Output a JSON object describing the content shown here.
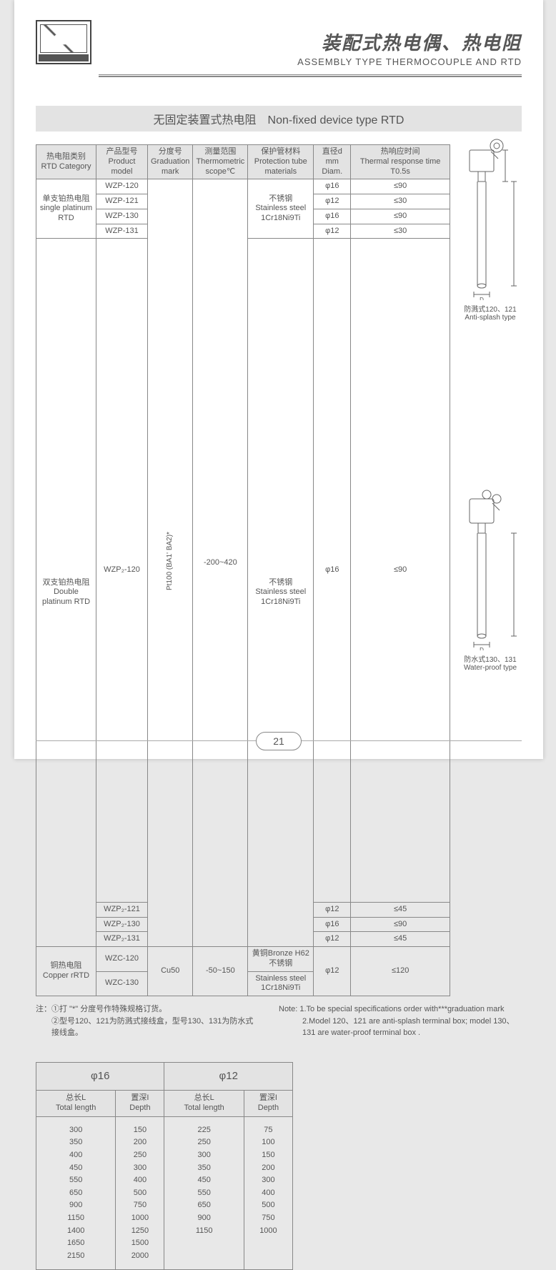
{
  "header": {
    "title_cn": "装配式热电偶、热电阻",
    "title_en": "ASSEMBLY TYPE THERMOCOUPLE AND RTD"
  },
  "section_title": "无固定装置式热电阻　Non-fixed  device type RTD",
  "table1": {
    "headers": {
      "cat_cn": "热电阻类别",
      "cat_en": "RTD Category",
      "model_cn": "产品型号",
      "model_en": "Product model",
      "grad_cn": "分度号",
      "grad_en": "Graduation mark",
      "scope_cn": "测量范围",
      "scope_en": "Thermometric scope℃",
      "tube_cn": "保护管材料",
      "tube_en": "Protection tube materials",
      "diam_cn": "直径d",
      "diam_en": "mm Diam.",
      "resp_cn": "热响应时间",
      "resp_en": "Thermal response time T0.5s"
    },
    "groups": [
      {
        "cat_cn": "单支铂热电阻",
        "cat_en": "single platinum RTD",
        "rows": [
          {
            "model": "WZP-120",
            "diam": "φ16",
            "resp": "≤90"
          },
          {
            "model": "WZP-121",
            "diam": "φ12",
            "resp": "≤30"
          },
          {
            "model": "WZP-130",
            "diam": "φ16",
            "resp": "≤90"
          },
          {
            "model": "WZP-131",
            "diam": "φ12",
            "resp": "≤30"
          }
        ]
      },
      {
        "cat_cn": "双支铂热电阻",
        "cat_en": "Double platinum RTD",
        "rows": [
          {
            "model": "WZP₂-120",
            "diam": "φ16",
            "resp": "≤90"
          },
          {
            "model": "WZP₂-121",
            "diam": "φ12",
            "resp": "≤45"
          },
          {
            "model": "WZP₂-130",
            "diam": "φ16",
            "resp": "≤90"
          },
          {
            "model": "WZP₂-131",
            "diam": "φ12",
            "resp": "≤45"
          }
        ]
      },
      {
        "cat_cn": "铜热电阻",
        "cat_en": "Copper rRTD",
        "rows": [
          {
            "model": "WZC-120"
          },
          {
            "model": "WZC-130"
          }
        ],
        "grad": "Cu50",
        "scope": "-50~150",
        "tube_cn1": "黄铜Bronze H62",
        "tube_cn2": "不锈钢",
        "tube_en": "Stainless steel 1Cr18Ni9Ti",
        "diam": "φ12",
        "resp": "≤120"
      }
    ],
    "platinum_grad": "Pt100 (BA1' BA2)*",
    "platinum_scope": "-200~420",
    "platinum_tube_cn": "不锈钢",
    "platinum_tube_en": "Stainless steel 1Cr18Ni9Ti"
  },
  "notes": {
    "left1": "注：①打 \"*\" 分度号作特殊规格订货。",
    "left2": "②型号120、121为防溅式接线盒，型号130、131为防水式接线盒。",
    "right1": "Note: 1.To be  special specifications order with***graduation mark",
    "right2": "2.Model 120、121 are anti-splash terminal box; model 130、131 are water-proof terminal box ."
  },
  "table2": {
    "h16": "φ16",
    "h12": "φ12",
    "sub": {
      "len_cn": "总长L",
      "len_en": "Total length",
      "dep_cn": "置深I",
      "dep_en": "Depth"
    },
    "c16_len": [
      "300",
      "350",
      "400",
      "450",
      "550",
      "650",
      "900",
      "1150",
      "1400",
      "1650",
      "2150"
    ],
    "c16_dep": [
      "150",
      "200",
      "250",
      "300",
      "400",
      "500",
      "750",
      "1000",
      "1250",
      "1500",
      "2000"
    ],
    "c12_len": [
      "225",
      "250",
      "300",
      "350",
      "450",
      "550",
      "650",
      "900",
      "1150"
    ],
    "c12_dep": [
      "75",
      "100",
      "150",
      "200",
      "300",
      "400",
      "500",
      "750",
      "1000"
    ]
  },
  "diagrams": {
    "d1_cn": "防溅式120、121",
    "d1_en": "Anti-splash type",
    "d2_cn": "防水式130、131",
    "d2_en": "Water-proof type",
    "label_d": "D"
  },
  "page_number": "21",
  "colors": {
    "border": "#888888",
    "header_bg": "#e3e3e3",
    "text": "#5a5a5a"
  }
}
